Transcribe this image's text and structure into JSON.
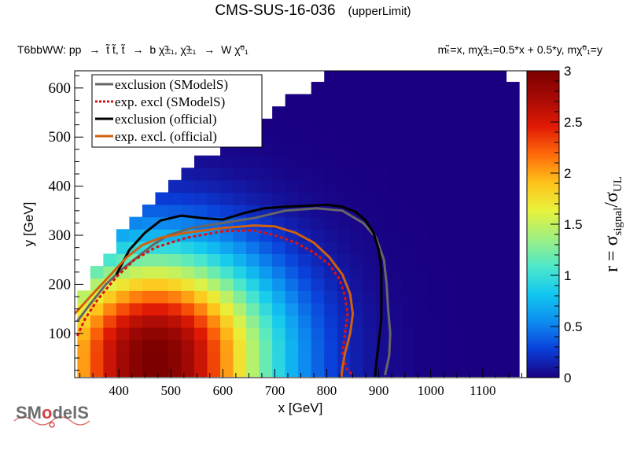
{
  "header": {
    "title": "CMS-SUS-16-036",
    "title_suffix": "(upperLimit)",
    "process_left": "T6bbWW: pp",
    "process_stop_pair": "t̃ t̃, t̃",
    "process_decay": "b χ̃±₁, χ̃±₁",
    "process_to_w": "W χ̃⁰₁",
    "mass_relations": "mₜ̃=x, mχ̃±₁=0.5*x + 0.5*y, mχ̃⁰₁=y"
  },
  "logo": {
    "text_sm": "SM",
    "text_o": "o",
    "text_dels": "delS"
  },
  "chart_data": {
    "type": "heatmap",
    "xlabel": "x [GeV]",
    "ylabel": "y [GeV]",
    "xlim": [
      315,
      1185
    ],
    "ylim": [
      10,
      635
    ],
    "xticks": [
      400,
      500,
      600,
      700,
      800,
      900,
      1000,
      1100
    ],
    "yticks": [
      100,
      200,
      300,
      400,
      500,
      600
    ],
    "xtick_labels": [
      "400",
      "500",
      "600",
      "700",
      "800",
      "900",
      "1000",
      "1100"
    ],
    "ytick_labels": [
      "100",
      "200",
      "300",
      "400",
      "500",
      "600"
    ],
    "grid": false,
    "colorbar": {
      "label": "r = σsignal/σUL",
      "label_main": "r = σ",
      "label_sub1": "signal",
      "label_mid": "/σ",
      "label_sub2": "UL",
      "min": 0,
      "max": 3,
      "ticks": [
        0,
        0.5,
        1,
        1.5,
        2,
        2.5,
        3
      ],
      "tick_labels": [
        "0",
        "0.5",
        "1",
        "1.5",
        "2",
        "2.5",
        "3"
      ]
    },
    "colormap": [
      "#1a0080",
      "#0a3ed9",
      "#0d8cf0",
      "#12c8f0",
      "#4fe8c9",
      "#9ff081",
      "#e8f23b",
      "#ffc21a",
      "#ff6a0a",
      "#e01a05",
      "#a80a05",
      "#7a0000"
    ],
    "grid_spec": {
      "x_start": 320,
      "x_step": 25,
      "y_start": 12.5,
      "y_step": 25
    },
    "heatmap_model": {
      "description": "r(x,y) surface read off the colormap",
      "r_max": 3,
      "peak_x": 470,
      "decay_x": 260,
      "decay_y": 240,
      "envelope": [
        [
          320,
          155
        ],
        [
          350,
          215
        ],
        [
          380,
          265
        ],
        [
          420,
          320
        ],
        [
          460,
          360
        ],
        [
          500,
          400
        ],
        [
          560,
          455
        ],
        [
          620,
          500
        ],
        [
          680,
          545
        ],
        [
          740,
          585
        ],
        [
          780,
          615
        ],
        [
          820,
          635
        ],
        [
          1150,
          635
        ],
        [
          1170,
          600
        ],
        [
          1170,
          10
        ],
        [
          320,
          10
        ]
      ]
    },
    "legend": {
      "placement": "top-left",
      "entries": [
        {
          "label": "exclusion (SModelS)",
          "color": "#666666",
          "style": "solid"
        },
        {
          "label": "exp. excl (SModelS)",
          "color": "#dd1111",
          "style": "dotted"
        },
        {
          "label": "exclusion (official)",
          "color": "#000000",
          "style": "solid"
        },
        {
          "label": "exp. excl. (official)",
          "color": "#d06010",
          "style": "solid"
        }
      ]
    },
    "series": [
      {
        "name": "exclusion (SModelS)",
        "color": "#666666",
        "style": "solid",
        "points": [
          [
            320,
            125
          ],
          [
            345,
            160
          ],
          [
            375,
            200
          ],
          [
            405,
            230
          ],
          [
            435,
            255
          ],
          [
            465,
            280
          ],
          [
            495,
            300
          ],
          [
            540,
            315
          ],
          [
            600,
            325
          ],
          [
            660,
            335
          ],
          [
            720,
            350
          ],
          [
            780,
            355
          ],
          [
            830,
            350
          ],
          [
            870,
            325
          ],
          [
            895,
            295
          ],
          [
            910,
            250
          ],
          [
            915,
            200
          ],
          [
            918,
            150
          ],
          [
            922,
            100
          ],
          [
            920,
            55
          ],
          [
            912,
            15
          ]
        ]
      },
      {
        "name": "exp. excl (SModelS)",
        "color": "#dd1111",
        "style": "dotted",
        "points": [
          [
            320,
            95
          ],
          [
            335,
            130
          ],
          [
            360,
            170
          ],
          [
            395,
            215
          ],
          [
            430,
            250
          ],
          [
            470,
            275
          ],
          [
            530,
            295
          ],
          [
            600,
            308
          ],
          [
            660,
            310
          ],
          [
            700,
            300
          ],
          [
            740,
            285
          ],
          [
            775,
            265
          ],
          [
            805,
            240
          ],
          [
            825,
            210
          ],
          [
            835,
            175
          ],
          [
            840,
            140
          ],
          [
            835,
            100
          ],
          [
            830,
            60
          ],
          [
            838,
            28
          ],
          [
            850,
            15
          ]
        ]
      },
      {
        "name": "exclusion (official)",
        "color": "#000000",
        "style": "solid",
        "points": [
          [
            395,
            220
          ],
          [
            420,
            270
          ],
          [
            450,
            305
          ],
          [
            480,
            330
          ],
          [
            520,
            340
          ],
          [
            560,
            335
          ],
          [
            600,
            332
          ],
          [
            640,
            345
          ],
          [
            680,
            355
          ],
          [
            720,
            358
          ],
          [
            760,
            360
          ],
          [
            800,
            362
          ],
          [
            830,
            358
          ],
          [
            855,
            348
          ],
          [
            875,
            330
          ],
          [
            890,
            305
          ],
          [
            900,
            270
          ],
          [
            905,
            230
          ],
          [
            905,
            180
          ],
          [
            905,
            130
          ],
          [
            900,
            80
          ],
          [
            895,
            40
          ],
          [
            893,
            12
          ]
        ]
      },
      {
        "name": "exp. excl. (official)",
        "color": "#d06010",
        "style": "solid",
        "points": [
          [
            315,
            140
          ],
          [
            345,
            175
          ],
          [
            380,
            215
          ],
          [
            415,
            255
          ],
          [
            445,
            280
          ],
          [
            480,
            295
          ],
          [
            530,
            305
          ],
          [
            600,
            315
          ],
          [
            660,
            320
          ],
          [
            700,
            318
          ],
          [
            740,
            305
          ],
          [
            775,
            285
          ],
          [
            805,
            255
          ],
          [
            830,
            220
          ],
          [
            845,
            180
          ],
          [
            850,
            140
          ],
          [
            845,
            100
          ],
          [
            835,
            60
          ],
          [
            830,
            30
          ],
          [
            828,
            12
          ]
        ]
      }
    ]
  }
}
